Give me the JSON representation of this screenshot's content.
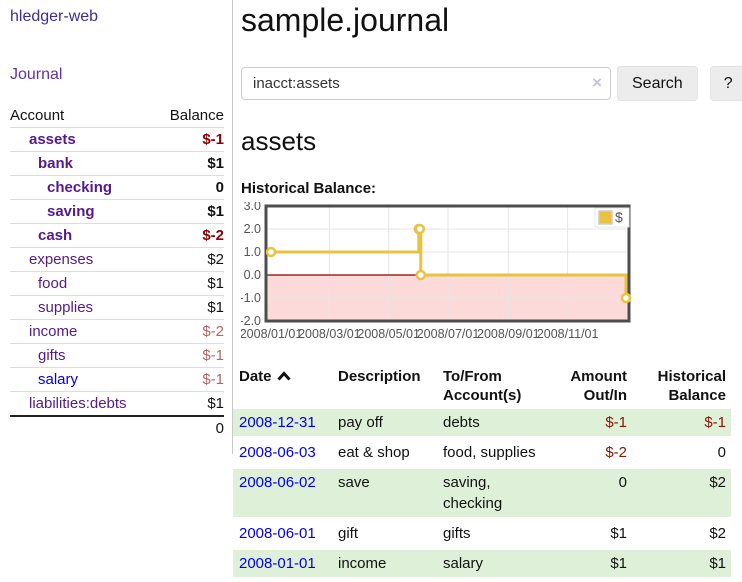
{
  "app_title": "hledger-web",
  "sidebar": {
    "journal_label": "Journal",
    "account_header": "Account",
    "balance_header": "Balance",
    "accounts": [
      {
        "name": "assets",
        "balance": "$-1",
        "level": 0,
        "bold": true,
        "neg": "strong"
      },
      {
        "name": "bank",
        "balance": "$1",
        "level": 1,
        "bold": true
      },
      {
        "name": "checking",
        "balance": "0",
        "level": 2,
        "bold": true
      },
      {
        "name": "saving",
        "balance": "$1",
        "level": 2,
        "bold": true
      },
      {
        "name": "cash",
        "balance": "$-2",
        "level": 1,
        "bold": true,
        "neg": "strong"
      },
      {
        "name": "expenses",
        "balance": "$2",
        "level": 0
      },
      {
        "name": "food",
        "balance": "$1",
        "level": 1
      },
      {
        "name": "supplies",
        "balance": "$1",
        "level": 1
      },
      {
        "name": "income",
        "balance": "$-2",
        "level": 0,
        "neg": "muted"
      },
      {
        "name": "gifts",
        "balance": "$-1",
        "level": 1,
        "neg": "muted"
      },
      {
        "name": "salary",
        "balance": "$-1",
        "level": 1,
        "neg": "muted",
        "blue": true
      },
      {
        "name": "liabilities:debts",
        "balance": "$1",
        "level": 0,
        "last": true
      }
    ],
    "total": "0"
  },
  "header": {
    "title": "sample.journal"
  },
  "search": {
    "value": "inacct:assets",
    "clear_icon": "×",
    "search_label": "Search",
    "help_label": "?"
  },
  "account_page": {
    "title": "assets",
    "chart_label": "Historical Balance:"
  },
  "chart_data": {
    "type": "line",
    "step": true,
    "title": "Historical Balance:",
    "series": [
      {
        "name": "$",
        "color": "#e9c23f",
        "points": [
          {
            "date": "2008-01-01",
            "value": 1
          },
          {
            "date": "2008-06-01",
            "value": 2
          },
          {
            "date": "2008-06-02",
            "value": 2
          },
          {
            "date": "2008-06-03",
            "value": 0
          },
          {
            "date": "2008-12-31",
            "value": -1
          }
        ]
      }
    ],
    "ylim": [
      -2,
      3
    ],
    "x_range": {
      "start": "2008-01-01",
      "end": "2009-01-01"
    },
    "y_ticks": [
      {
        "label": "3.0",
        "value": 3
      },
      {
        "label": "2.0",
        "value": 2
      },
      {
        "label": "1.0",
        "value": 1
      },
      {
        "label": "0.0",
        "value": 0
      },
      {
        "label": "-1.0",
        "value": -1
      },
      {
        "label": "-2.0",
        "value": -2
      }
    ],
    "x_ticks": [
      {
        "label": "2008/01/01",
        "date": "2008-01-01"
      },
      {
        "label": "2008/03/01",
        "date": "2008-03-01"
      },
      {
        "label": "2008/05/01",
        "date": "2008-05-01"
      },
      {
        "label": "2008/07/01",
        "date": "2008-07-01"
      },
      {
        "label": "2008/09/01",
        "date": "2008-09-01"
      },
      {
        "label": "2008/11/01",
        "date": "2008-11-01"
      }
    ],
    "grid": true,
    "legend_position": "top-right",
    "colors": {
      "negative_fill": "#fcdada",
      "zero_line": "#8b0000",
      "grid_line": "#e6e6e6",
      "border": "#4d4d4d",
      "tick_text": "#545454"
    }
  },
  "register": {
    "headers": [
      {
        "label": "Date",
        "sort": "asc"
      },
      {
        "label": "Description"
      },
      {
        "label": "To/From Account(s)"
      },
      {
        "label": "Amount Out/In",
        "align": "right"
      },
      {
        "label": "Historical Balance",
        "align": "right"
      }
    ],
    "rows": [
      {
        "date": "2008-12-31",
        "description": "pay off",
        "accounts": "debts",
        "amount": "$-1",
        "balance": "$-1"
      },
      {
        "date": "2008-06-03",
        "description": "eat & shop",
        "accounts": "food, supplies",
        "amount": "$-2",
        "balance": "0"
      },
      {
        "date": "2008-06-02",
        "description": "save",
        "accounts": "saving, checking",
        "amount": "0",
        "balance": "$2"
      },
      {
        "date": "2008-06-01",
        "description": "gift",
        "accounts": "gifts",
        "amount": "$1",
        "balance": "$2"
      },
      {
        "date": "2008-01-01",
        "description": "income",
        "accounts": "salary",
        "amount": "$1",
        "balance": "$1"
      }
    ],
    "colors": {
      "row_alt_bg": "#dff0d8",
      "negative": "#8b1500",
      "date_link": "#0000ee"
    }
  }
}
